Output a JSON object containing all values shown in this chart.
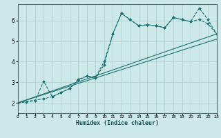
{
  "title": "",
  "xlabel": "Humidex (Indice chaleur)",
  "ylabel": "",
  "bg_color": "#cce8e8",
  "grid_color": "#b0d0d0",
  "line_color": "#1a7070",
  "xlim": [
    0,
    23
  ],
  "ylim": [
    1.5,
    6.8
  ],
  "xticks": [
    0,
    1,
    2,
    3,
    4,
    5,
    6,
    7,
    8,
    9,
    10,
    11,
    12,
    13,
    14,
    15,
    16,
    17,
    18,
    19,
    20,
    21,
    22,
    23
  ],
  "yticks": [
    2,
    3,
    4,
    5,
    6
  ],
  "series": [
    {
      "x": [
        0,
        1,
        2,
        3,
        4,
        5,
        6,
        7,
        8,
        9,
        10,
        11,
        12,
        13,
        14,
        15,
        16,
        17,
        18,
        19,
        20,
        21,
        22,
        23
      ],
      "y": [
        2.0,
        2.05,
        2.1,
        3.05,
        2.3,
        2.5,
        2.7,
        3.15,
        3.3,
        3.2,
        3.85,
        5.35,
        6.35,
        6.05,
        5.75,
        5.8,
        5.75,
        5.65,
        6.15,
        6.05,
        5.95,
        6.6,
        6.05,
        5.35
      ],
      "dashed": true,
      "marker": true
    },
    {
      "x": [
        0,
        3,
        4,
        5,
        6,
        7,
        8,
        9,
        10,
        11,
        12,
        13,
        14,
        15,
        16,
        17,
        18,
        19,
        20,
        21,
        22,
        23
      ],
      "y": [
        2.0,
        2.2,
        2.3,
        2.5,
        2.7,
        3.1,
        3.3,
        3.25,
        4.0,
        5.35,
        6.35,
        6.05,
        5.75,
        5.8,
        5.75,
        5.65,
        6.15,
        6.05,
        5.95,
        6.05,
        5.85,
        5.35
      ],
      "dashed": true,
      "marker": true
    },
    {
      "x": [
        0,
        23
      ],
      "y": [
        2.0,
        5.35
      ],
      "dashed": false,
      "marker": false
    },
    {
      "x": [
        0,
        23
      ],
      "y": [
        2.0,
        5.1
      ],
      "dashed": false,
      "marker": false
    }
  ]
}
